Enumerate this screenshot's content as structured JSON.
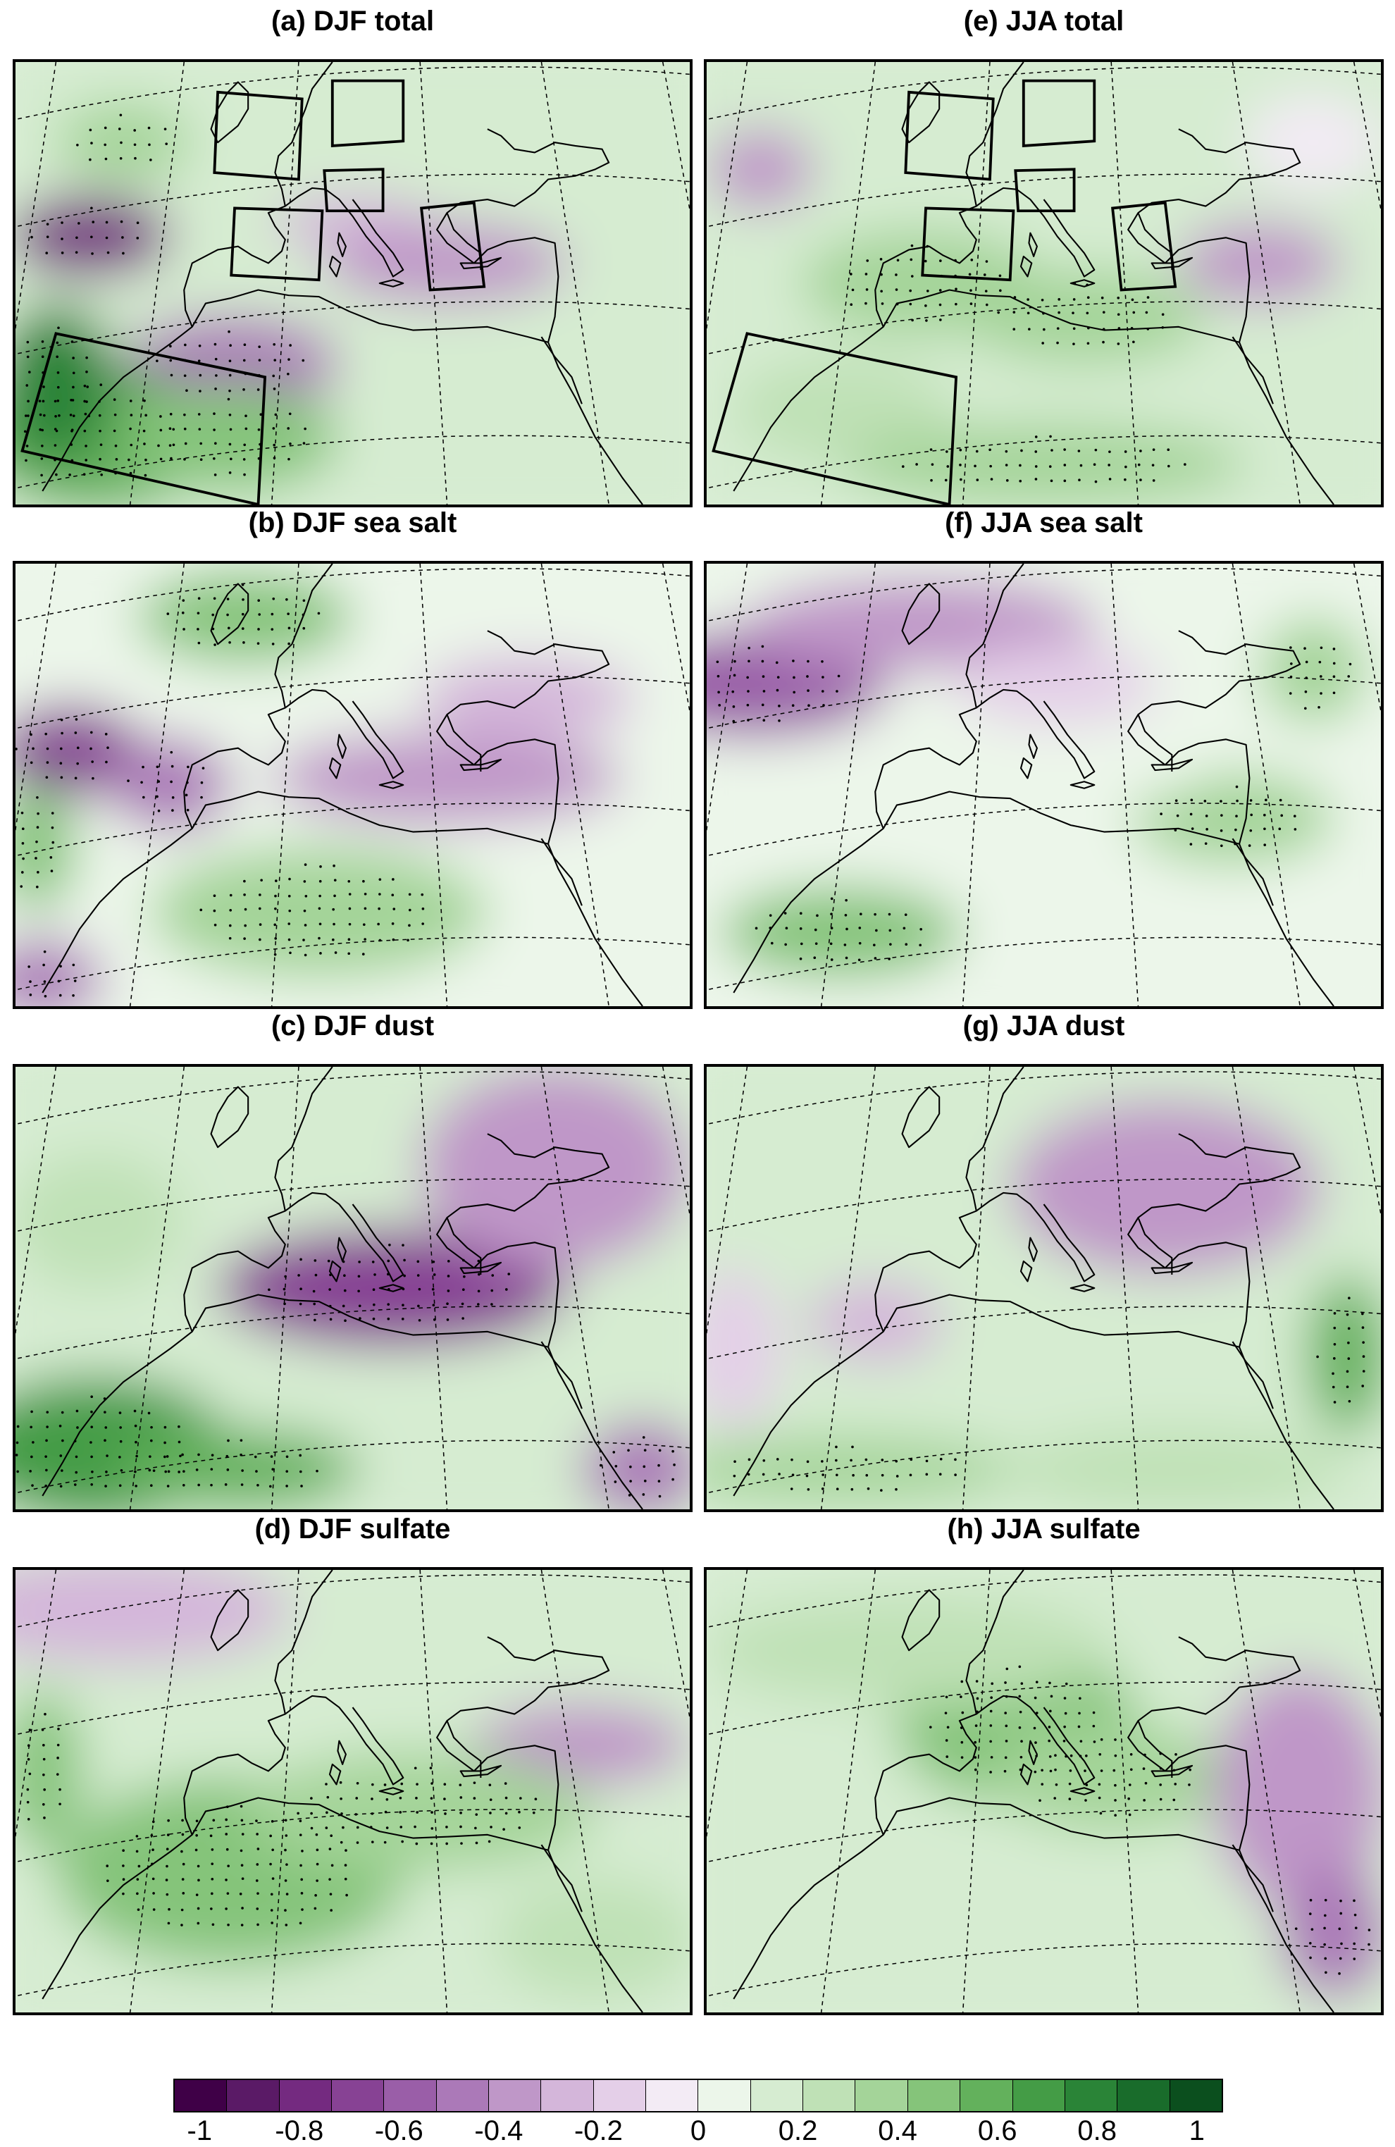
{
  "panels": [
    {
      "id": "a",
      "title": "(a) DJF total",
      "season": "DJF",
      "component": "total",
      "pattern": "total_djf",
      "boxes": true
    },
    {
      "id": "e",
      "title": "(e) JJA total",
      "season": "JJA",
      "component": "total",
      "pattern": "total_jja",
      "boxes": true
    },
    {
      "id": "b",
      "title": "(b) DJF sea salt",
      "season": "DJF",
      "component": "sea salt",
      "pattern": "seasalt_djf",
      "boxes": false
    },
    {
      "id": "f",
      "title": "(f) JJA sea salt",
      "season": "JJA",
      "component": "sea salt",
      "pattern": "seasalt_jja",
      "boxes": false
    },
    {
      "id": "c",
      "title": "(c) DJF dust",
      "season": "DJF",
      "component": "dust",
      "pattern": "dust_djf",
      "boxes": false
    },
    {
      "id": "g",
      "title": "(g) JJA dust",
      "season": "JJA",
      "component": "dust",
      "pattern": "dust_jja",
      "boxes": false
    },
    {
      "id": "d",
      "title": "(d) DJF sulfate",
      "season": "DJF",
      "component": "sulfate",
      "pattern": "sulfate_djf",
      "boxes": false
    },
    {
      "id": "h",
      "title": "(h) JJA sulfate",
      "season": "JJA",
      "component": "sulfate",
      "pattern": "sulfate_jja",
      "boxes": false
    }
  ],
  "colorbar": {
    "min": -1,
    "max": 1,
    "step": 0.1,
    "tick_labels": [
      "-1",
      "-0.8",
      "-0.6",
      "-0.4",
      "-0.2",
      "0",
      "0.2",
      "0.4",
      "0.6",
      "0.8",
      "1"
    ],
    "colors": [
      "#3f0047",
      "#5a1a66",
      "#742a80",
      "#874294",
      "#9a5ea8",
      "#ab79b8",
      "#bf97c8",
      "#d4b6da",
      "#e4cfe8",
      "#f3ebf5",
      "#ecf6ea",
      "#d6ecd1",
      "#bfe1b6",
      "#a4d499",
      "#85c47a",
      "#63b15c",
      "#449c46",
      "#2a8437",
      "#196c2b",
      "#0b4f1e"
    ]
  },
  "colors": {
    "coastline": "#000000",
    "graticule": "#000000",
    "negative": "#8b4a9e",
    "positive": "#2a8a3a"
  }
}
